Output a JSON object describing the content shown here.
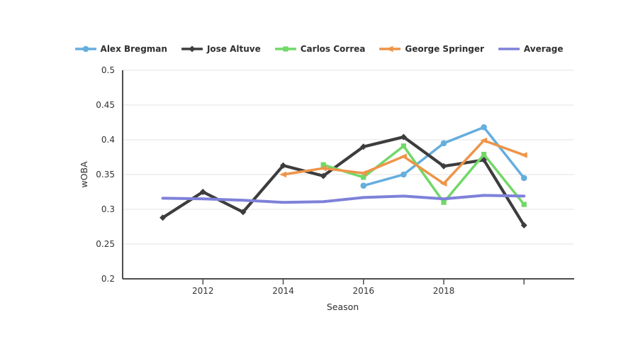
{
  "chart_data": {
    "type": "line",
    "title": "",
    "xlabel": "Season",
    "ylabel": "wOBA",
    "xlim": [
      2010,
      2021.25
    ],
    "ylim": [
      0.2,
      0.5
    ],
    "y_ticks": [
      0.2,
      0.25,
      0.3,
      0.35,
      0.4,
      0.45,
      0.5
    ],
    "x_ticks_labeled": [
      2012,
      2014,
      2016,
      2018
    ],
    "x_ticks_unlabeled": [
      2020
    ],
    "grid": "horizontal-only",
    "legend_position": "top-center",
    "axis_color": "#4d4d4d",
    "grid_color": "#e3e3e3",
    "text_color": "#333333",
    "series": [
      {
        "name": "Alex Bregman",
        "color": "#65aede",
        "marker": "circle",
        "line_width": 3.5,
        "x": [
          2016,
          2017,
          2018,
          2019,
          2020
        ],
        "values": [
          0.334,
          0.35,
          0.395,
          0.418,
          0.345
        ]
      },
      {
        "name": "Jose Altuve",
        "color": "#3d3d3d",
        "marker": "diamond",
        "line_width": 4.2,
        "x": [
          2011,
          2012,
          2013,
          2014,
          2015,
          2016,
          2017,
          2018,
          2019,
          2020
        ],
        "values": [
          0.288,
          0.325,
          0.296,
          0.363,
          0.348,
          0.39,
          0.404,
          0.362,
          0.371,
          0.277
        ]
      },
      {
        "name": "Carlos Correa",
        "color": "#72d867",
        "marker": "square",
        "line_width": 3.5,
        "x": [
          2015,
          2016,
          2017,
          2018,
          2019,
          2020
        ],
        "values": [
          0.364,
          0.346,
          0.391,
          0.31,
          0.379,
          0.307
        ]
      },
      {
        "name": "George Springer",
        "color": "#ee9449",
        "marker": "triangle-left",
        "line_width": 3.5,
        "x": [
          2014,
          2015,
          2016,
          2017,
          2018,
          2019,
          2020
        ],
        "values": [
          0.35,
          0.359,
          0.352,
          0.376,
          0.337,
          0.399,
          0.378
        ]
      },
      {
        "name": "Average",
        "color": "#7e81d9",
        "marker": "none",
        "line_width": 4,
        "x": [
          2011,
          2012,
          2013,
          2014,
          2015,
          2016,
          2017,
          2018,
          2019,
          2020
        ],
        "values": [
          0.316,
          0.315,
          0.313,
          0.31,
          0.311,
          0.317,
          0.319,
          0.315,
          0.32,
          0.319
        ]
      }
    ]
  }
}
